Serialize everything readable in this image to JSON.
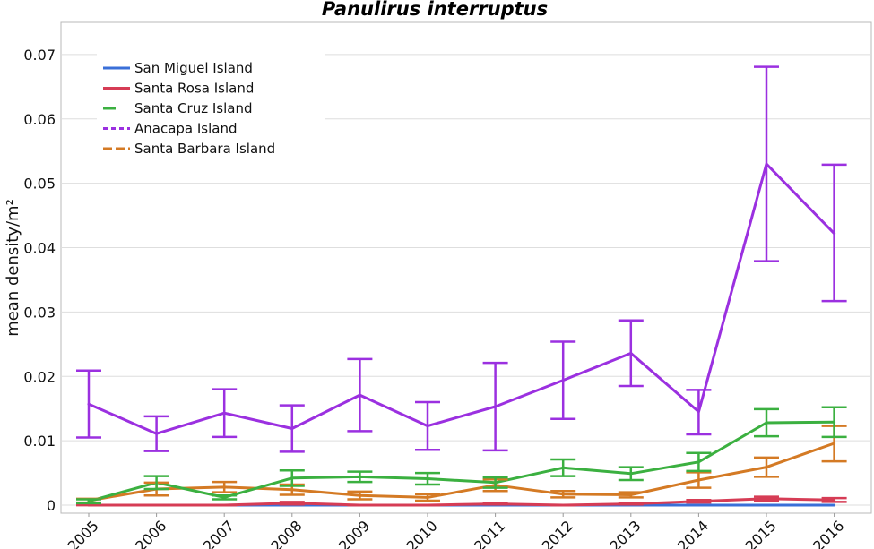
{
  "chart_data": {
    "type": "line",
    "title": "Panulirus interruptus",
    "xlabel": "",
    "ylabel": "mean density/m²",
    "x": [
      "2005",
      "2006",
      "2007",
      "2008",
      "2009",
      "2010",
      "2011",
      "2012",
      "2013",
      "2014",
      "2015",
      "2016"
    ],
    "ylim": [
      0,
      0.075
    ],
    "yticks": [
      "0",
      "0.01",
      "0.02",
      "0.03",
      "0.04",
      "0.05",
      "0.06",
      "0.07"
    ],
    "grid": "horizontal",
    "legend_position": "top-left",
    "series": [
      {
        "name": "San Miguel Island",
        "color": "#3a6fd8",
        "values": [
          0,
          0,
          0,
          0,
          0,
          0,
          0,
          0,
          0,
          0,
          0,
          0
        ],
        "err_low": [
          0,
          0,
          0,
          0,
          0,
          0,
          0,
          0,
          0,
          0,
          0,
          0
        ],
        "err_high": [
          0,
          0,
          0,
          0,
          0,
          0,
          0,
          0,
          0,
          0,
          0,
          0
        ],
        "errorbars": false
      },
      {
        "name": "Santa Rosa Island",
        "color": "#d63c55",
        "values": [
          0,
          0,
          0,
          0.0003,
          0,
          0,
          0.0002,
          0,
          0.0002,
          0.0006,
          0.001,
          0.0008
        ],
        "err_low": [
          0,
          0,
          0,
          0.0001,
          0,
          0,
          0.0001,
          0,
          0.0001,
          0.0004,
          0.0007,
          0.0005
        ],
        "err_high": [
          0,
          0,
          0,
          0.0005,
          0,
          0,
          0.0003,
          0,
          0.0003,
          0.0008,
          0.0013,
          0.0011
        ],
        "errorbars": true
      },
      {
        "name": "Santa Cruz Island",
        "color": "#3bb040",
        "values": [
          0.0006,
          0.0035,
          0.0012,
          0.0042,
          0.0044,
          0.0041,
          0.0035,
          0.0058,
          0.0049,
          0.0067,
          0.0128,
          0.0129
        ],
        "err_low": [
          0.0003,
          0.0025,
          0.0009,
          0.003,
          0.0036,
          0.0032,
          0.0027,
          0.0045,
          0.0039,
          0.0053,
          0.0107,
          0.0106
        ],
        "err_high": [
          0.0009,
          0.0045,
          0.0015,
          0.0054,
          0.0052,
          0.005,
          0.0043,
          0.0071,
          0.0059,
          0.0081,
          0.0149,
          0.0152
        ],
        "errorbars": true
      },
      {
        "name": "Anacapa Island",
        "color": "#9b30e0",
        "values": [
          0.0157,
          0.0111,
          0.0143,
          0.0119,
          0.0171,
          0.0123,
          0.0153,
          0.0194,
          0.0236,
          0.0145,
          0.053,
          0.0422
        ],
        "err_low": [
          0.0105,
          0.0084,
          0.0106,
          0.0083,
          0.0115,
          0.0086,
          0.0085,
          0.0134,
          0.0185,
          0.011,
          0.0379,
          0.0317
        ],
        "err_high": [
          0.0209,
          0.0138,
          0.018,
          0.0155,
          0.0227,
          0.016,
          0.0221,
          0.0254,
          0.0287,
          0.0179,
          0.0681,
          0.0529
        ],
        "errorbars": true
      },
      {
        "name": "Santa Barbara Island",
        "color": "#d47a24",
        "values": [
          0.0007,
          0.0025,
          0.0028,
          0.0024,
          0.0015,
          0.0012,
          0.0031,
          0.0017,
          0.0016,
          0.0039,
          0.0059,
          0.0096
        ],
        "err_low": [
          0.0004,
          0.0015,
          0.002,
          0.0016,
          0.0009,
          0.0007,
          0.0022,
          0.0012,
          0.0012,
          0.0027,
          0.0044,
          0.0068
        ],
        "err_high": [
          0.001,
          0.0035,
          0.0036,
          0.0032,
          0.0021,
          0.0017,
          0.004,
          0.0022,
          0.002,
          0.0051,
          0.0074,
          0.0123
        ],
        "errorbars": true
      }
    ]
  }
}
